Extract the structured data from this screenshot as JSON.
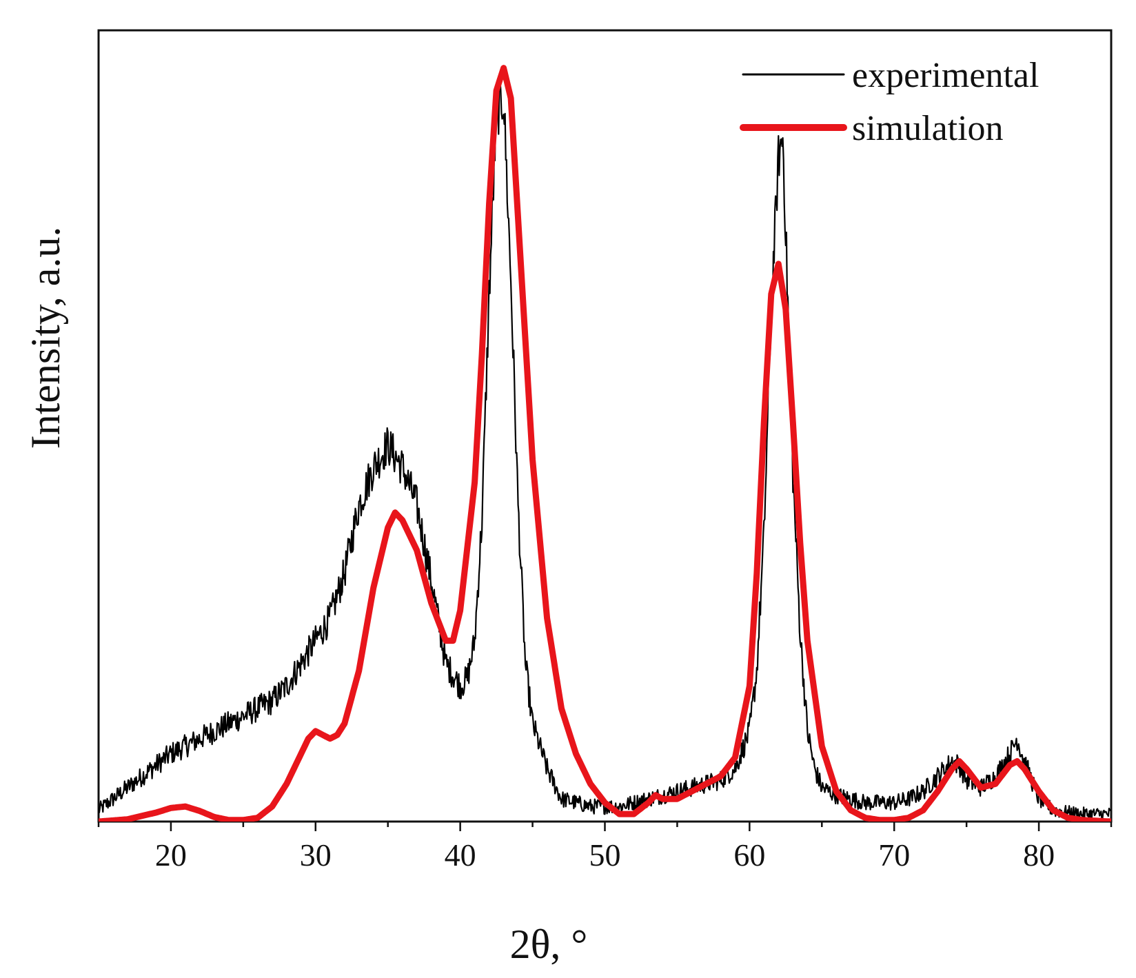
{
  "chart_data": {
    "type": "line",
    "title": "",
    "xlabel": "2θ, °",
    "ylabel": "Intensity, a.u.",
    "xlim": [
      15,
      85
    ],
    "ylim": [
      0,
      1.05
    ],
    "xticks": [
      20,
      30,
      40,
      50,
      60,
      70,
      80
    ],
    "yticks_shown": false,
    "grid": false,
    "legend_position": "top-right",
    "series": [
      {
        "name": "experimental",
        "color": "#000000",
        "style": "thin",
        "noisy": true,
        "x": [
          15,
          16,
          17,
          18,
          19,
          20,
          21,
          22,
          23,
          24,
          25,
          26,
          27,
          28,
          29,
          30,
          31,
          32,
          33,
          34,
          35,
          36,
          37,
          38,
          39,
          40,
          40.5,
          41,
          41.5,
          42,
          42.5,
          43,
          43.5,
          44,
          44.5,
          45,
          46,
          47,
          48,
          49,
          50,
          51,
          52,
          53,
          54,
          55,
          56,
          57,
          58,
          59,
          60,
          60.5,
          61,
          61.5,
          62,
          62.3,
          62.6,
          63,
          63.5,
          64,
          64.5,
          65,
          66,
          67,
          68,
          69,
          70,
          71,
          72,
          73,
          74,
          74.5,
          75,
          76,
          77,
          78,
          78.5,
          79,
          80,
          81,
          82,
          83,
          84,
          85
        ],
        "y": [
          0.015,
          0.03,
          0.045,
          0.06,
          0.075,
          0.09,
          0.1,
          0.11,
          0.12,
          0.13,
          0.14,
          0.15,
          0.16,
          0.18,
          0.21,
          0.24,
          0.27,
          0.33,
          0.42,
          0.47,
          0.5,
          0.47,
          0.42,
          0.32,
          0.21,
          0.18,
          0.19,
          0.24,
          0.4,
          0.7,
          0.94,
          0.96,
          0.72,
          0.42,
          0.21,
          0.13,
          0.07,
          0.03,
          0.025,
          0.02,
          0.02,
          0.02,
          0.025,
          0.03,
          0.035,
          0.04,
          0.045,
          0.05,
          0.055,
          0.07,
          0.12,
          0.2,
          0.38,
          0.68,
          0.88,
          0.91,
          0.72,
          0.46,
          0.25,
          0.12,
          0.07,
          0.045,
          0.035,
          0.03,
          0.025,
          0.025,
          0.025,
          0.03,
          0.04,
          0.06,
          0.08,
          0.075,
          0.055,
          0.045,
          0.06,
          0.09,
          0.11,
          0.08,
          0.03,
          0.015,
          0.012,
          0.01,
          0.01,
          0.01
        ]
      },
      {
        "name": "simulation",
        "color": "#e8151b",
        "style": "thick",
        "noisy": false,
        "x": [
          15,
          17,
          19,
          20,
          21,
          22,
          23,
          24,
          25,
          26,
          27,
          28,
          29,
          29.5,
          30,
          30.5,
          31,
          31.5,
          32,
          33,
          34,
          35,
          35.5,
          36,
          37,
          38,
          39,
          39.5,
          40,
          41,
          41.5,
          42,
          42.5,
          43,
          43.5,
          44,
          45,
          46,
          47,
          48,
          49,
          50,
          51,
          52,
          53,
          53.5,
          54,
          55,
          56,
          57,
          58,
          59,
          60,
          60.5,
          61,
          61.5,
          62,
          62.5,
          63,
          63.5,
          64,
          65,
          66,
          67,
          68,
          69,
          70,
          71,
          72,
          73,
          74,
          74.5,
          75,
          76,
          77,
          78,
          78.5,
          79,
          80,
          81,
          82,
          83,
          84,
          85
        ],
        "y": [
          0,
          0.003,
          0.012,
          0.018,
          0.02,
          0.014,
          0.006,
          0.002,
          0.002,
          0.005,
          0.02,
          0.05,
          0.09,
          0.11,
          0.12,
          0.115,
          0.11,
          0.115,
          0.13,
          0.2,
          0.31,
          0.39,
          0.41,
          0.4,
          0.36,
          0.29,
          0.24,
          0.24,
          0.28,
          0.45,
          0.62,
          0.82,
          0.97,
          1.0,
          0.96,
          0.8,
          0.48,
          0.27,
          0.15,
          0.09,
          0.05,
          0.025,
          0.01,
          0.01,
          0.025,
          0.035,
          0.03,
          0.03,
          0.04,
          0.05,
          0.06,
          0.085,
          0.18,
          0.33,
          0.53,
          0.7,
          0.74,
          0.68,
          0.53,
          0.37,
          0.24,
          0.1,
          0.04,
          0.015,
          0.005,
          0.002,
          0.002,
          0.005,
          0.015,
          0.04,
          0.07,
          0.08,
          0.07,
          0.045,
          0.05,
          0.075,
          0.08,
          0.07,
          0.04,
          0.015,
          0.005,
          0.002,
          0.001,
          0.0
        ]
      }
    ]
  }
}
